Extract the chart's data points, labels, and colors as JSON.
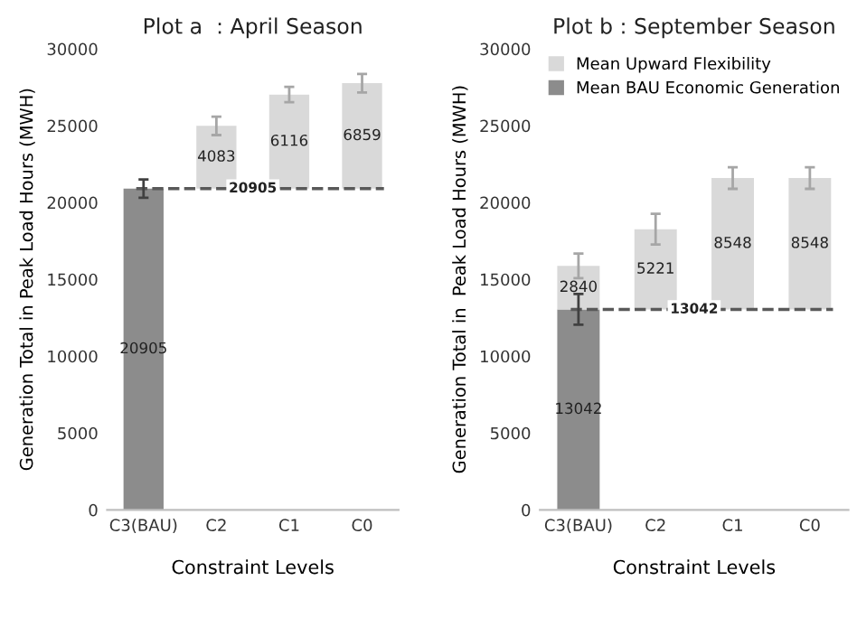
{
  "chart_data": [
    {
      "type": "bar",
      "title": "Plot a  : April Season",
      "xlabel": "Constraint Levels",
      "ylabel": "Generation Total in Peak Load Hours (MWH)",
      "categories": [
        "C3(BAU)",
        "C2",
        "C1",
        "C0"
      ],
      "series": [
        {
          "color": "#8c8c8c",
          "values": [
            20905,
            null,
            null,
            null
          ],
          "errors": [
            600,
            null,
            null,
            null
          ]
        },
        {
          "color": "#d9d9d9",
          "values": [
            null,
            4083,
            6116,
            6859
          ],
          "base": [
            null,
            20905,
            20905,
            20905
          ],
          "errors": [
            null,
            600,
            500,
            600
          ]
        }
      ],
      "ylim": [
        0,
        30000
      ],
      "yticks": [
        0,
        5000,
        10000,
        15000,
        20000,
        25000,
        30000
      ],
      "grid": false,
      "legend": false,
      "data_labels": true,
      "ref_lines": [
        {
          "axis": "y",
          "value": 20905,
          "label": "20905",
          "color": "#595959",
          "line_style": "dashed"
        }
      ]
    },
    {
      "type": "bar",
      "title": "Plot b : September Season",
      "xlabel": "Constraint Levels",
      "ylabel": "Generation Total in  Peak Load Hours (MWH)",
      "categories": [
        "C3(BAU)",
        "C2",
        "C1",
        "C0"
      ],
      "series": [
        {
          "name": "Mean BAU Economic Generation",
          "color": "#8c8c8c",
          "values": [
            13042,
            null,
            null,
            null
          ],
          "errors": [
            1000,
            null,
            null,
            null
          ]
        },
        {
          "name": "Mean Upward Flexibility",
          "color": "#d9d9d9",
          "values": [
            2840,
            5221,
            8548,
            8548
          ],
          "base": [
            13042,
            13042,
            13042,
            13042
          ],
          "errors": [
            800,
            1000,
            700,
            700
          ]
        }
      ],
      "ylim": [
        0,
        30000
      ],
      "yticks": [
        0,
        5000,
        10000,
        15000,
        20000,
        25000,
        30000
      ],
      "grid": false,
      "legend": "top right",
      "data_labels": true,
      "ref_lines": [
        {
          "axis": "y",
          "value": 13042,
          "label": "13042",
          "color": "#595959",
          "line_style": "dashed"
        }
      ]
    }
  ]
}
